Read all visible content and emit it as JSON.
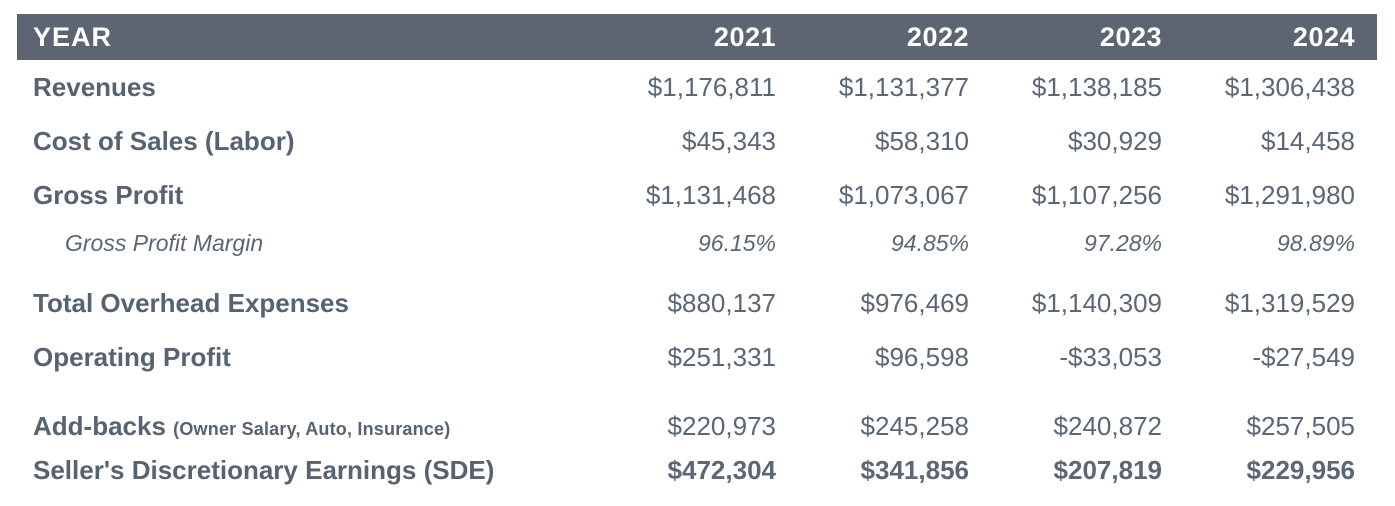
{
  "colors": {
    "header_bg": "#5c6571",
    "header_text": "#ffffff",
    "body_text": "#5b6774",
    "label_text": "#586371",
    "page_bg": "#ffffff"
  },
  "table": {
    "header": {
      "label": "YEAR",
      "years": [
        "2021",
        "2022",
        "2023",
        "2024"
      ]
    },
    "rows": [
      {
        "label": "Revenues",
        "values": [
          "$1,176,811",
          "$1,131,377",
          "$1,138,185",
          "$1,306,438"
        ]
      },
      {
        "label": "Cost of Sales (Labor)",
        "values": [
          "$45,343",
          "$58,310",
          "$30,929",
          "$14,458"
        ]
      },
      {
        "label": "Gross Profit",
        "values": [
          "$1,131,468",
          "$1,073,067",
          "$1,107,256",
          "$1,291,980"
        ]
      },
      {
        "label": "Gross Profit Margin",
        "values": [
          "96.15%",
          "94.85%",
          "97.28%",
          "98.89%"
        ]
      },
      {
        "label": "Total Overhead Expenses",
        "values": [
          "$880,137",
          "$976,469",
          "$1,140,309",
          "$1,319,529"
        ]
      },
      {
        "label": "Operating Profit",
        "values": [
          "$251,331",
          "$96,598",
          "-$33,053",
          "-$27,549"
        ]
      },
      {
        "label": "Add-backs",
        "label_suffix": "(Owner Salary, Auto, Insurance)",
        "values": [
          "$220,973",
          "$245,258",
          "$240,872",
          "$257,505"
        ]
      },
      {
        "label": "Seller's Discretionary Earnings (SDE)",
        "values": [
          "$472,304",
          "$341,856",
          "$207,819",
          "$229,956"
        ]
      }
    ]
  },
  "chart_data": {
    "type": "table",
    "title": "YEAR",
    "columns": [
      "2021",
      "2022",
      "2023",
      "2024"
    ],
    "rows": [
      {
        "label": "Revenues",
        "unit": "USD",
        "values": [
          1176811,
          1131377,
          1138185,
          1306438
        ]
      },
      {
        "label": "Cost of Sales (Labor)",
        "unit": "USD",
        "values": [
          45343,
          58310,
          30929,
          14458
        ]
      },
      {
        "label": "Gross Profit",
        "unit": "USD",
        "values": [
          1131468,
          1073067,
          1107256,
          1291980
        ]
      },
      {
        "label": "Gross Profit Margin",
        "unit": "%",
        "values": [
          96.15,
          94.85,
          97.28,
          98.89
        ]
      },
      {
        "label": "Total Overhead Expenses",
        "unit": "USD",
        "values": [
          880137,
          976469,
          1140309,
          1319529
        ]
      },
      {
        "label": "Operating Profit",
        "unit": "USD",
        "values": [
          251331,
          96598,
          -33053,
          -27549
        ]
      },
      {
        "label": "Add-backs (Owner Salary, Auto, Insurance)",
        "unit": "USD",
        "values": [
          220973,
          245258,
          240872,
          257505
        ]
      },
      {
        "label": "Seller's Discretionary Earnings (SDE)",
        "unit": "USD",
        "values": [
          472304,
          341856,
          207819,
          229956
        ]
      }
    ]
  }
}
